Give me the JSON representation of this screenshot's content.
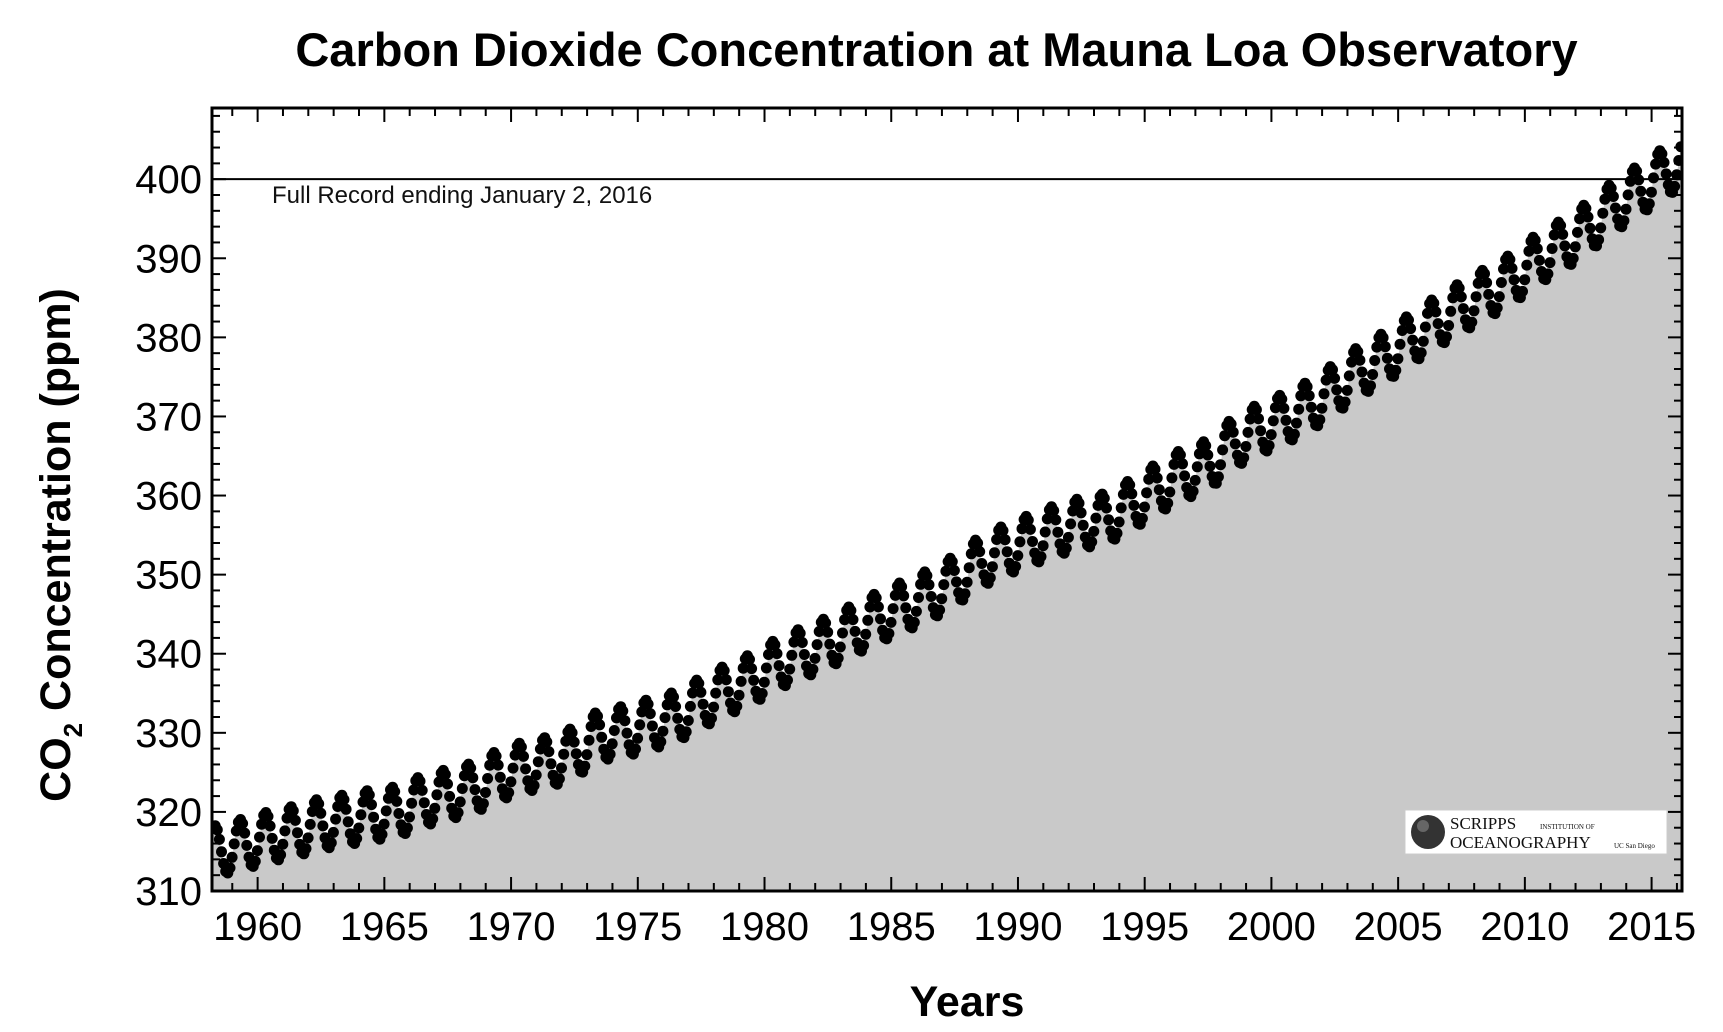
{
  "chart_data": {
    "type": "scatter",
    "title": "Carbon Dioxide Concentration at Mauna Loa Observatory",
    "xlabel": "Years",
    "ylabel_main": "CO",
    "ylabel_sub": "2",
    "ylabel_rest": " Concentration (ppm)",
    "xlim": [
      1958.2,
      2016.2
    ],
    "ylim": [
      310,
      409
    ],
    "x_ticks": [
      1960,
      1965,
      1970,
      1975,
      1980,
      1985,
      1990,
      1995,
      2000,
      2005,
      2010,
      2015
    ],
    "y_ticks": [
      310,
      320,
      330,
      340,
      350,
      360,
      370,
      380,
      390,
      400
    ],
    "reference_line": {
      "y": 400
    },
    "annotation": "Full Record ending January 2, 2016",
    "grid": false,
    "fill_below_curve": true,
    "series": [
      {
        "x": [
          1958.5,
          1959.5,
          1960.5,
          1961.5,
          1962.5,
          1963.5,
          1964.5,
          1965.5,
          1966.5,
          1967.5,
          1968.5,
          1969.5,
          1970.5,
          1971.5,
          1972.5,
          1973.5,
          1974.5,
          1975.5,
          1976.5,
          1977.5,
          1978.5,
          1979.5,
          1980.5,
          1981.5,
          1982.5,
          1983.5,
          1984.5,
          1985.5,
          1986.5,
          1987.5,
          1988.5,
          1989.5,
          1990.5,
          1991.5,
          1992.5,
          1993.5,
          1994.5,
          1995.5,
          1996.5,
          1997.5,
          1998.5,
          1999.5,
          2000.5,
          2001.5,
          2002.5,
          2003.5,
          2004.5,
          2005.5,
          2006.5,
          2007.5,
          2008.5,
          2009.5,
          2010.5,
          2011.5,
          2012.5,
          2013.5,
          2014.5,
          2015.5
        ],
        "values": [
          315.2,
          316.0,
          316.9,
          317.6,
          318.5,
          319.0,
          319.6,
          320.0,
          321.4,
          322.2,
          323.0,
          324.6,
          325.7,
          326.3,
          327.5,
          329.7,
          330.2,
          331.1,
          332.0,
          333.8,
          335.4,
          336.8,
          338.7,
          340.1,
          341.4,
          343.0,
          344.6,
          346.0,
          347.4,
          349.2,
          351.6,
          353.1,
          354.4,
          355.6,
          356.5,
          357.1,
          358.9,
          360.9,
          362.7,
          363.8,
          366.7,
          368.4,
          369.7,
          371.3,
          373.5,
          375.8,
          377.5,
          379.8,
          381.9,
          383.8,
          385.6,
          387.4,
          389.9,
          391.7,
          393.9,
          396.5,
          398.6,
          400.8
        ],
        "seasonal_amplitude_ppm": 3.2
      }
    ]
  },
  "logo": {
    "line1": "SCRIPPS",
    "line1_small": "INSTITUTION OF",
    "line2": "OCEANOGRAPHY",
    "line2_small": "UC San Diego"
  },
  "colors": {
    "fill": "#c9c9c9",
    "points": "#000000",
    "frame": "#000000"
  }
}
